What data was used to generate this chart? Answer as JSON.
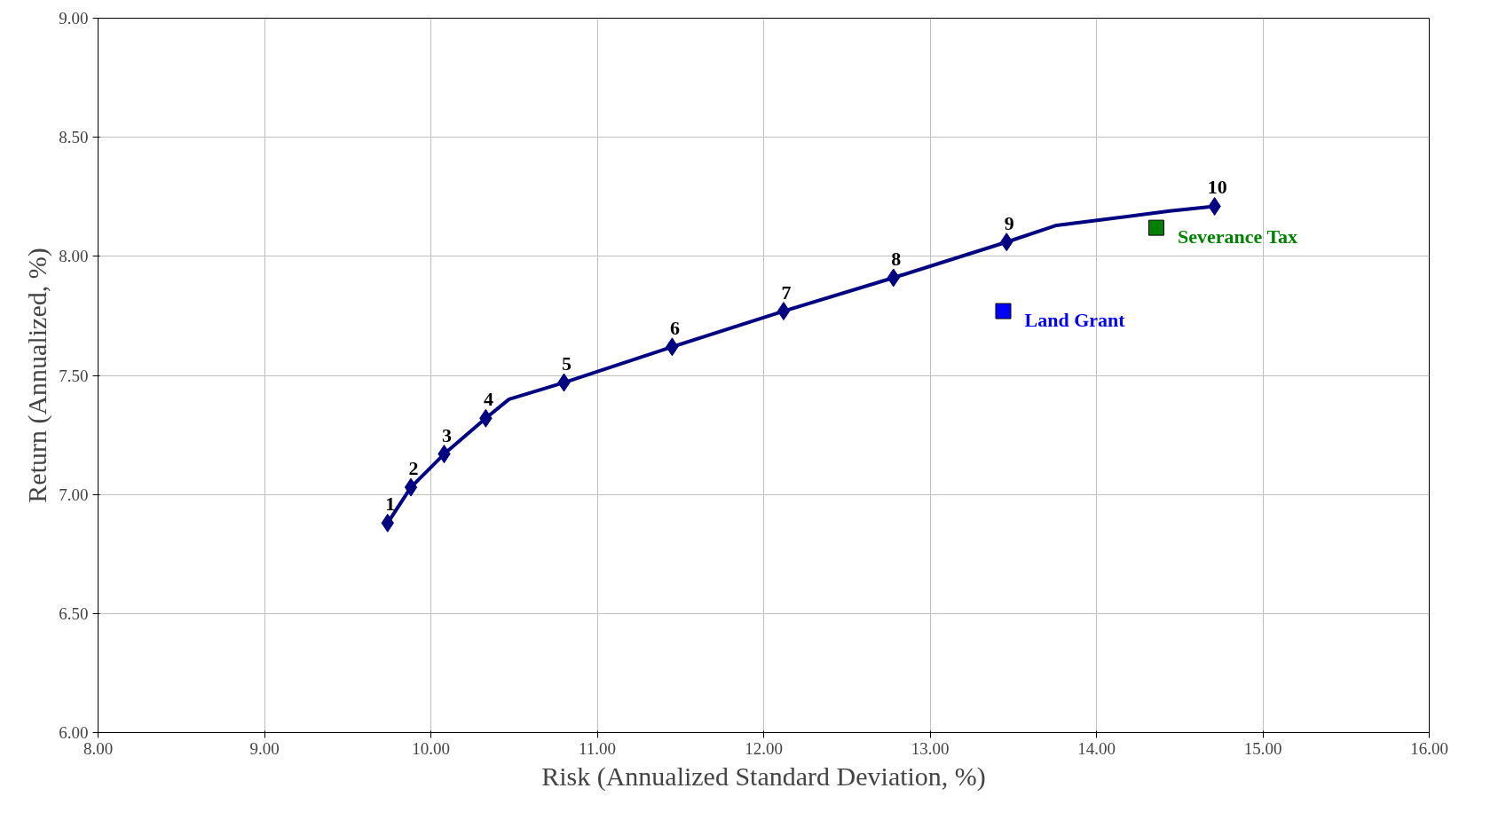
{
  "chart_data": {
    "type": "line",
    "xlabel": "Risk (Annualized Standard Deviation, %)",
    "ylabel": "Return (Annualized, %)",
    "xlim": [
      8,
      16
    ],
    "ylim": [
      6,
      9
    ],
    "xticks": [
      {
        "value": 8,
        "label": "8.00"
      },
      {
        "value": 9,
        "label": "9.00"
      },
      {
        "value": 10,
        "label": "10.00"
      },
      {
        "value": 11,
        "label": "11.00"
      },
      {
        "value": 12,
        "label": "12.00"
      },
      {
        "value": 13,
        "label": "13.00"
      },
      {
        "value": 14,
        "label": "14.00"
      },
      {
        "value": 15,
        "label": "15.00"
      },
      {
        "value": 16,
        "label": "16.00"
      }
    ],
    "yticks": [
      {
        "value": 6,
        "label": "6.00"
      },
      {
        "value": 6.5,
        "label": "6.50"
      },
      {
        "value": 7,
        "label": "7.00"
      },
      {
        "value": 7.5,
        "label": "7.50"
      },
      {
        "value": 8,
        "label": "8.00"
      },
      {
        "value": 8.5,
        "label": "8.50"
      },
      {
        "value": 9,
        "label": "9.00"
      }
    ],
    "grid": true,
    "annotations": [
      {
        "text": "1",
        "x": 9.74,
        "y": 6.88
      },
      {
        "text": "2",
        "x": 9.88,
        "y": 7.03
      },
      {
        "text": "3",
        "x": 10.08,
        "y": 7.17
      },
      {
        "text": "4",
        "x": 10.33,
        "y": 7.32
      },
      {
        "text": "5",
        "x": 10.8,
        "y": 7.47
      },
      {
        "text": "6",
        "x": 11.45,
        "y": 7.62
      },
      {
        "text": "7",
        "x": 12.12,
        "y": 7.77
      },
      {
        "text": "8",
        "x": 12.78,
        "y": 7.91
      },
      {
        "text": "9",
        "x": 13.46,
        "y": 8.06
      },
      {
        "text": "10",
        "x": 14.71,
        "y": 8.21
      }
    ],
    "series": [
      {
        "color": "#000080",
        "marker": "none",
        "line_style": "solid",
        "x": [
          9.74,
          9.88,
          10.08,
          10.33,
          10.47,
          10.8,
          11.45,
          12.12,
          12.78,
          13.46,
          13.76,
          14.44,
          14.71
        ],
        "values": [
          6.88,
          7.03,
          7.17,
          7.32,
          7.4,
          7.47,
          7.62,
          7.77,
          7.91,
          8.06,
          8.13,
          8.19,
          8.21
        ]
      },
      {
        "type": "scatter",
        "color": "#000080",
        "marker": "diamond",
        "x": [
          9.74,
          9.88,
          10.08,
          10.33,
          10.8,
          11.45,
          12.12,
          12.78,
          13.46,
          14.71
        ],
        "values": [
          6.88,
          7.03,
          7.17,
          7.32,
          7.47,
          7.62,
          7.77,
          7.91,
          8.06,
          8.21
        ]
      },
      {
        "type": "scatter",
        "name": "Land Grant",
        "color": "#0000ff",
        "marker": "square",
        "x": [
          13.44
        ],
        "values": [
          7.77
        ]
      },
      {
        "type": "scatter",
        "name": "Severance Tax",
        "color": "#008000",
        "marker": "square",
        "x": [
          14.36
        ],
        "values": [
          8.12
        ]
      }
    ]
  }
}
